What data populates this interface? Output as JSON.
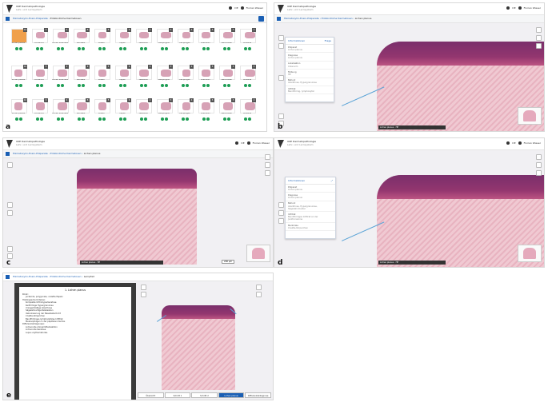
{
  "header": {
    "brand_title": "UKE Dermatopathologie",
    "brand_sub": "Lehr- und Lernsystem",
    "lang_label": "DE",
    "user_name": "Florian Wieser"
  },
  "panels": {
    "a": {
      "label": "a",
      "breadcrumb": [
        "Hämatoxylin-Eosin-Präparate",
        "Entzündliche Dermatosen"
      ],
      "tiles": [
        {
          "caption": "Lichen planus",
          "badge": "10"
        },
        {
          "caption": "Lichenoid",
          "badge": "3"
        },
        {
          "caption": "Lichen sclerosus",
          "badge": "4"
        },
        {
          "caption": "Psoriasis",
          "badge": "8"
        },
        {
          "caption": "Ekzem",
          "badge": "5"
        },
        {
          "caption": "Lupus",
          "badge": "6"
        },
        {
          "caption": "Vaskulitis",
          "badge": "2"
        },
        {
          "caption": "Pemphigoid",
          "badge": "3"
        },
        {
          "caption": "Pemphigus",
          "badge": "4"
        },
        {
          "caption": "Granulom",
          "badge": "5"
        },
        {
          "caption": "Sarkoidose",
          "badge": "3"
        },
        {
          "caption": "Urtikaria",
          "badge": "2"
        }
      ]
    },
    "b": {
      "label": "b",
      "breadcrumb": [
        "Hämatoxylin-Eosin-Präparate",
        "Entzündliche Dermatosen",
        "Lichen planus"
      ],
      "info": {
        "title": "Informationen",
        "link": "Frage",
        "rows": [
          {
            "label": "Präparat",
            "value": "Lichen planus"
          },
          {
            "label": "Diagnose",
            "value": "Lichen planus"
          },
          {
            "label": "Lokalisation",
            "value": "Unterarm"
          },
          {
            "label": "Färbung",
            "value": "HE"
          },
          {
            "label": "Befund",
            "value": "Akanthose, Hypergranulose"
          },
          {
            "label": "Infiltrat",
            "value": "Bandförmig, lymphozytär"
          }
        ]
      },
      "status": "Lichen planus · HE"
    },
    "c": {
      "label": "c",
      "breadcrumb": [
        "Hämatoxylin-Eosin-Präparate",
        "Entzündliche Dermatosen",
        "Lichen planus"
      ],
      "status": "Lichen planus · HE",
      "scale": "200 µm"
    },
    "d": {
      "label": "d",
      "breadcrumb": [
        "Hämatoxylin-Eosin-Präparate",
        "Entzündliche Dermatosen",
        "Lichen planus"
      ],
      "info": {
        "title": "Informationen",
        "rows": [
          {
            "label": "Präparat",
            "value": "Lichen planus"
          },
          {
            "label": "Diagnose",
            "value": "Lichen planus"
          },
          {
            "label": "Befund",
            "value": "Akanthose, Hypergranulose, Sägezahnmuster"
          },
          {
            "label": "Infiltrat",
            "value": "Bandförmiges Infiltrat an der Junktionszone"
          },
          {
            "label": "Merkmale",
            "value": "Civatte-Körperchen"
          }
        ]
      },
      "status": "Lichen planus · HE"
    },
    "e": {
      "label": "e",
      "breadcrumb": [
        "Hämatoxylin-Eosin-Präparate",
        "Entzündliche Dermatosen",
        "Lernpfad"
      ],
      "doc_title": "1. Lichen planus",
      "doc_lines": [
        "Klinik:",
        "Juckende, polygonale, violette Papeln",
        "Histologische Kriterien:",
        "Kompakte Orthohyperkeratose",
        "Keilförmige Hypergranulose",
        "Unregelmäßige Akanthose",
        "Sägezahnartige Reteleisten",
        "Vakuolisierung der Basalzellschicht",
        "Civatte-Körperchen",
        "Bandförmiges lymphozytäres Infiltrat",
        "Melanophagen in der papillären Dermis",
        "Differenzialdiagnosen:",
        "Lichenoide Arzneimittelreaktion",
        "Lichenoide Keratose",
        "Lupus erythematodes"
      ],
      "tabs": [
        "Übersicht",
        "Schritt 1",
        "Schritt 2",
        "Lichen planus",
        "Differenzialdiagnose"
      ],
      "active_tab": 3
    }
  },
  "colors": {
    "accent": "#1a5fb4",
    "epidermis": "#7a2f6b",
    "dermis": "#f0c9d2",
    "check": "#1e9e55",
    "annotation": "#5aa3d6"
  }
}
